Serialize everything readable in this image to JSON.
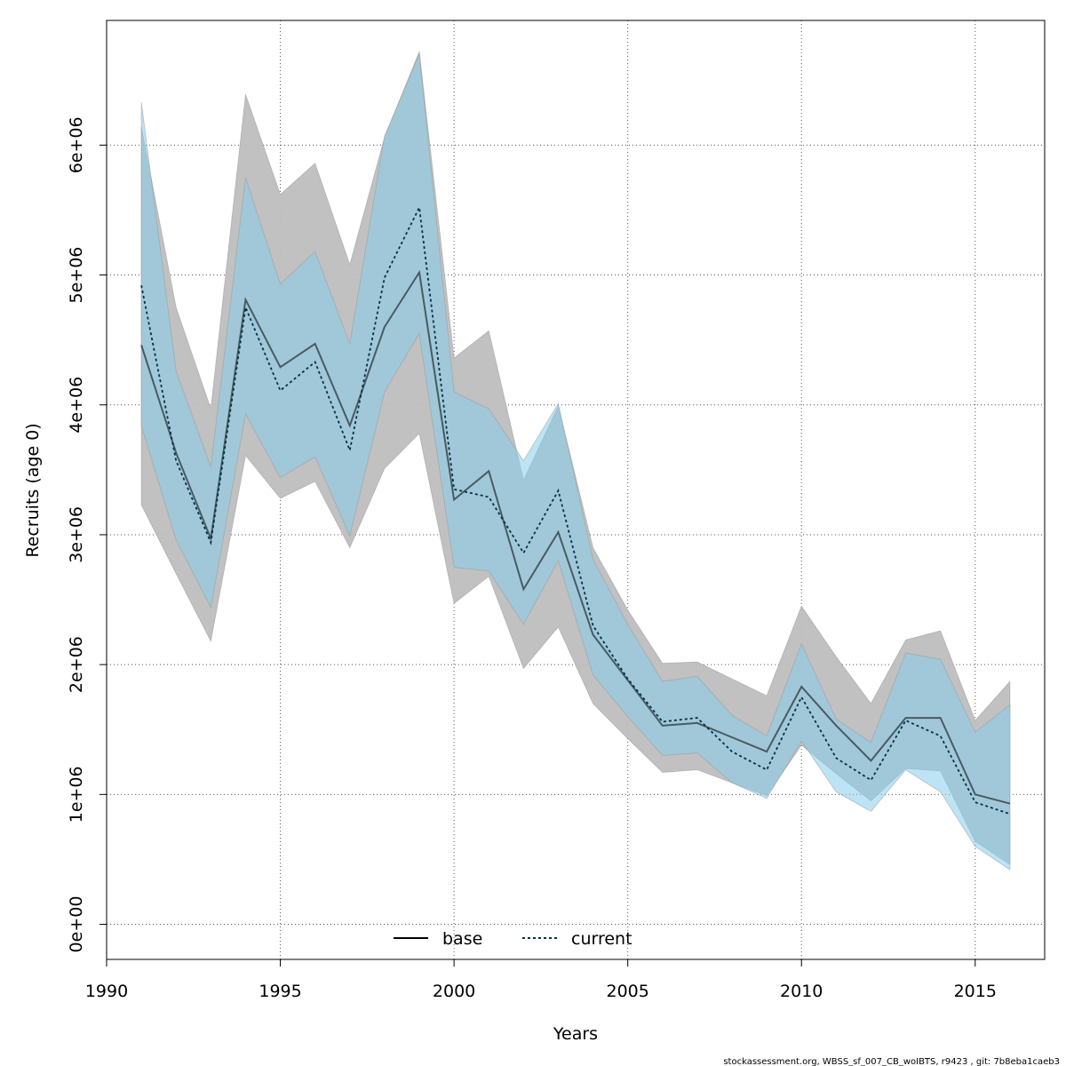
{
  "chart_data": {
    "type": "line",
    "title": "",
    "xlabel": "Years",
    "ylabel": "Recruits (age 0)",
    "xlim": [
      1990,
      2017
    ],
    "ylim": [
      -270000,
      6960000
    ],
    "xticks": [
      1990,
      1995,
      2000,
      2005,
      2010,
      2015
    ],
    "xtick_labels": [
      "1990",
      "1995",
      "2000",
      "2005",
      "2010",
      "2015"
    ],
    "yticks": [
      0,
      1000000,
      2000000,
      3000000,
      4000000,
      5000000,
      6000000
    ],
    "ytick_labels": [
      "0e+00",
      "1e+06",
      "2e+06",
      "3e+06",
      "4e+06",
      "5e+06",
      "6e+06"
    ],
    "grid": true,
    "legend_position": "bottom",
    "colors": {
      "base_band": "#bebebe",
      "current_band": "#87ceeb",
      "base_line": "#000000",
      "current_line": "#003247"
    },
    "x": [
      1991,
      1992,
      1993,
      1994,
      1995,
      1996,
      1997,
      1998,
      1999,
      2000,
      2001,
      2002,
      2003,
      2004,
      2005,
      2006,
      2007,
      2008,
      2009,
      2010,
      2011,
      2012,
      2013,
      2014,
      2015,
      2016
    ],
    "series": [
      {
        "name": "base",
        "values": [
          4460000,
          3630000,
          2970000,
          4810000,
          4290000,
          4470000,
          3840000,
          4600000,
          5020000,
          3270000,
          3490000,
          2580000,
          3020000,
          2230000,
          1880000,
          1530000,
          1550000,
          1440000,
          1330000,
          1830000,
          1530000,
          1260000,
          1590000,
          1590000,
          1000000,
          930000
        ],
        "lower": [
          3230000,
          2700000,
          2180000,
          3610000,
          3280000,
          3410000,
          2900000,
          3510000,
          3780000,
          2470000,
          2680000,
          1970000,
          2290000,
          1700000,
          1430000,
          1170000,
          1190000,
          1090000,
          990000,
          1380000,
          1160000,
          950000,
          1200000,
          1180000,
          640000,
          460000
        ],
        "upper": [
          6140000,
          4750000,
          3970000,
          6390000,
          5620000,
          5860000,
          5080000,
          6060000,
          6720000,
          4360000,
          4570000,
          3420000,
          3990000,
          2900000,
          2420000,
          2010000,
          2020000,
          1890000,
          1760000,
          2450000,
          2060000,
          1700000,
          2190000,
          2260000,
          1570000,
          1870000
        ]
      },
      {
        "name": "current",
        "values": [
          4920000,
          3570000,
          2940000,
          4750000,
          4110000,
          4330000,
          3650000,
          4980000,
          5520000,
          3350000,
          3290000,
          2860000,
          3340000,
          2300000,
          1890000,
          1560000,
          1590000,
          1330000,
          1190000,
          1750000,
          1280000,
          1110000,
          1570000,
          1450000,
          940000,
          850000
        ],
        "lower": [
          3840000,
          2960000,
          2440000,
          3930000,
          3440000,
          3600000,
          2990000,
          4100000,
          4550000,
          2750000,
          2720000,
          2310000,
          2800000,
          1920000,
          1600000,
          1300000,
          1320000,
          1090000,
          970000,
          1410000,
          1020000,
          870000,
          1190000,
          1020000,
          600000,
          420000
        ],
        "upper": [
          6330000,
          4260000,
          3520000,
          5750000,
          4930000,
          5180000,
          4470000,
          6070000,
          6700000,
          4100000,
          3970000,
          3570000,
          4010000,
          2810000,
          2310000,
          1870000,
          1910000,
          1610000,
          1450000,
          2160000,
          1580000,
          1400000,
          2090000,
          2040000,
          1480000,
          1690000
        ]
      }
    ]
  },
  "legend": {
    "base_label": "base",
    "current_label": "current"
  },
  "footnote": "stockassessment.org, WBSS_sf_007_CB_woIBTS, r9423 , git: 7b8eba1caeb3"
}
